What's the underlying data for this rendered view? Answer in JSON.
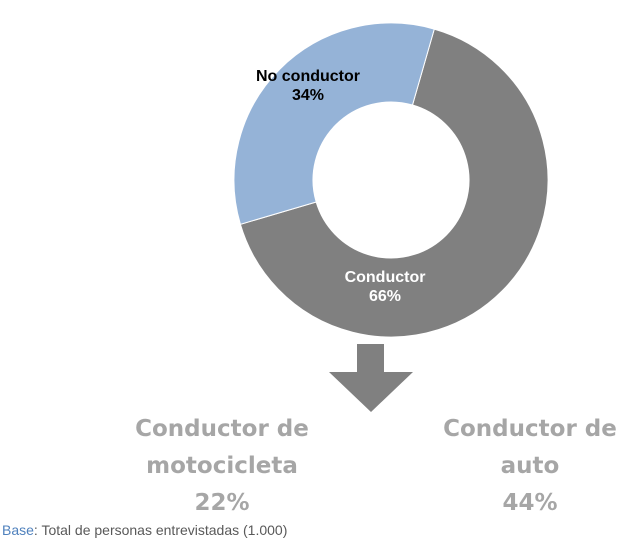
{
  "chart_data": {
    "type": "donut",
    "categories": [
      "Conductor",
      "No conductor"
    ],
    "values": [
      66,
      34
    ],
    "value_labels": [
      "66%",
      "34%"
    ],
    "colors": [
      "#808080",
      "#95b3d7"
    ],
    "label_colors": [
      "#ffffff",
      "#000000"
    ]
  },
  "breakdown": [
    {
      "label": "Conductor de motocicleta",
      "value": "22%"
    },
    {
      "label": "Conductor de auto",
      "value": "44%"
    }
  ],
  "note": {
    "term": "Base",
    "text": ": Total de personas entrevistadas (1.000)"
  }
}
